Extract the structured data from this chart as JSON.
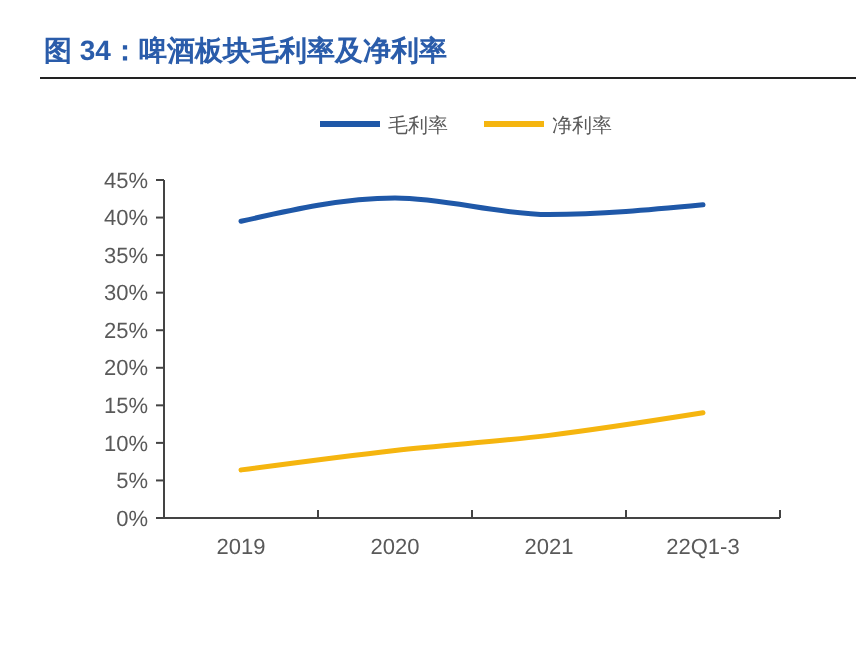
{
  "chart_data": {
    "type": "line",
    "title": "图 34：啤酒板块毛利率及净利率",
    "categories": [
      "2019",
      "2020",
      "2021",
      "22Q1-3"
    ],
    "series": [
      {
        "name": "毛利率",
        "color": "#1f58a8",
        "values": [
          39.5,
          42.6,
          40.4,
          41.7
        ]
      },
      {
        "name": "净利率",
        "color": "#f5b50f",
        "values": [
          6.4,
          9.0,
          11.0,
          14.0
        ]
      }
    ],
    "ylim": [
      0,
      45
    ],
    "yticks": [
      {
        "value": 0,
        "label": "0%"
      },
      {
        "value": 5,
        "label": "5%"
      },
      {
        "value": 10,
        "label": "10%"
      },
      {
        "value": 15,
        "label": "15%"
      },
      {
        "value": 20,
        "label": "20%"
      },
      {
        "value": 25,
        "label": "25%"
      },
      {
        "value": 30,
        "label": "30%"
      },
      {
        "value": 35,
        "label": "35%"
      },
      {
        "value": 40,
        "label": "40%"
      },
      {
        "value": 45,
        "label": "45%"
      }
    ],
    "legend": "top",
    "grid": false
  }
}
